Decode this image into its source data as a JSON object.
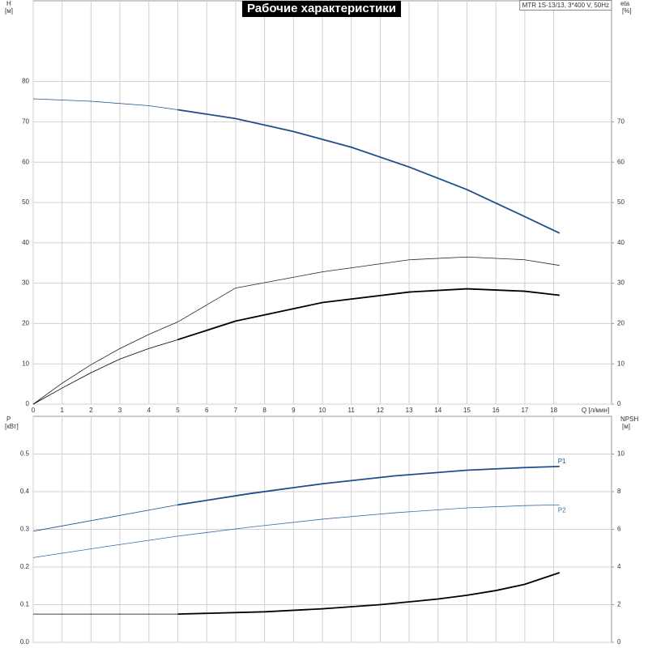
{
  "chart_data": [
    {
      "type": "line",
      "title": "Рабочие характеристики",
      "model": "MTR 1S-13/13, 3*400 V, 50Hz",
      "ylabel": "H",
      "yunit": "[м]",
      "y2label": "eta",
      "y2unit": "[%]",
      "xlabel": "Q [л/мин]",
      "xlim": [
        0,
        20
      ],
      "xticks": [
        0,
        1,
        2,
        3,
        4,
        5,
        6,
        7,
        8,
        9,
        10,
        11,
        12,
        13,
        14,
        15,
        16,
        17,
        18
      ],
      "ylim": [
        0,
        100
      ],
      "yticks": [
        0,
        10,
        20,
        30,
        40,
        50,
        60,
        70,
        80
      ],
      "y2lim": [
        0,
        100
      ],
      "y2ticks": [
        0,
        10,
        20,
        30,
        40,
        50,
        60,
        70
      ],
      "grid": true,
      "bold_from": 5,
      "series": [
        {
          "color": "#1f4e8c",
          "axis": "y",
          "bold": true,
          "x": [
            0,
            2,
            4,
            5,
            7,
            9,
            11,
            13,
            15,
            17,
            18.2
          ],
          "values": [
            75.7,
            75.1,
            74.0,
            73.0,
            70.8,
            67.6,
            63.7,
            58.8,
            53.2,
            46.5,
            42.4
          ]
        },
        {
          "color": "#222222",
          "axis": "y2",
          "bold": false,
          "x": [
            0,
            1,
            2,
            3,
            4,
            5,
            7,
            10,
            13,
            15,
            17,
            18.2
          ],
          "values": [
            0,
            5.2,
            9.8,
            13.8,
            17.3,
            20.4,
            28.8,
            32.8,
            35.8,
            36.5,
            35.8,
            34.4
          ]
        },
        {
          "color": "#000000",
          "axis": "y2",
          "bold": true,
          "x": [
            0,
            1,
            2,
            3,
            4,
            5,
            7,
            10,
            13,
            15,
            17,
            18.2
          ],
          "values": [
            0,
            4,
            7.8,
            11.2,
            13.8,
            16,
            20.6,
            25.2,
            27.8,
            28.6,
            28,
            27
          ]
        }
      ]
    },
    {
      "type": "line",
      "ylabel": "P",
      "yunit": "[кВт]",
      "y2label": "NPSH",
      "y2unit": "[м]",
      "xlim": [
        0,
        20
      ],
      "xticks": [
        0,
        1,
        2,
        3,
        4,
        5,
        6,
        7,
        8,
        9,
        10,
        11,
        12,
        13,
        14,
        15,
        16,
        17,
        18
      ],
      "show_xtick_labels": false,
      "ylim": [
        0,
        0.6
      ],
      "yticks": [
        {
          "value": 0,
          "label": "0.0"
        },
        0.1,
        0.2,
        0.3,
        0.4,
        0.5
      ],
      "y2lim": [
        0,
        12
      ],
      "y2ticks": [
        0,
        2,
        4,
        6,
        8,
        10
      ],
      "grid": true,
      "bold_from": 5,
      "series": [
        {
          "name": "P1",
          "color": "#1f4e8c",
          "axis": "y",
          "bold": true,
          "x": [
            0,
            2.5,
            5,
            7.5,
            10,
            12.5,
            15,
            17,
            18.2
          ],
          "values": [
            0.295,
            0.33,
            0.365,
            0.395,
            0.421,
            0.442,
            0.457,
            0.464,
            0.467
          ]
        },
        {
          "name": "P2",
          "color": "#3a6aa8",
          "axis": "y",
          "bold": false,
          "x": [
            0,
            2.5,
            5,
            7.5,
            10,
            12.5,
            15,
            17,
            18.2
          ],
          "values": [
            0.225,
            0.254,
            0.282,
            0.306,
            0.327,
            0.344,
            0.357,
            0.363,
            0.365
          ]
        },
        {
          "color": "#000000",
          "axis": "y2",
          "bold": true,
          "x": [
            0,
            5,
            8,
            10,
            12,
            14,
            15,
            16,
            17,
            18.2
          ],
          "values": [
            1.5,
            1.5,
            1.62,
            1.78,
            2.0,
            2.3,
            2.5,
            2.75,
            3.08,
            3.7
          ]
        }
      ]
    }
  ]
}
